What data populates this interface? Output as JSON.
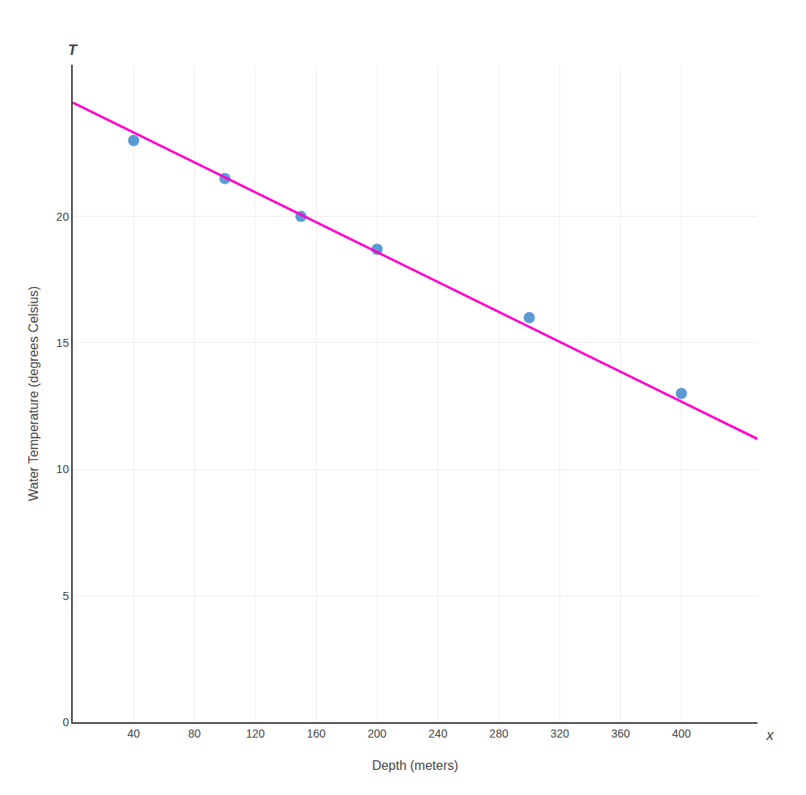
{
  "chart_data": {
    "type": "scatter",
    "xlabel": "Depth (meters)",
    "ylabel": "Water Temperature (degrees Celsius)",
    "annotations": [
      "x",
      "T"
    ],
    "series": [
      {
        "type": "scatter",
        "color": "#5b9bd5",
        "x": [
          40,
          100,
          150,
          200,
          300,
          400
        ],
        "values": [
          23.0,
          21.5,
          20.0,
          18.7,
          16.0,
          13.0
        ]
      },
      {
        "type": "line",
        "color": "#ff00cc",
        "x": [
          0,
          450
        ],
        "values": [
          24.5,
          11.2
        ]
      }
    ],
    "xlim": [
      0,
      450
    ],
    "xticks": [
      40,
      80,
      120,
      160,
      200,
      240,
      280,
      320,
      360,
      400
    ],
    "ylim": [
      0,
      26
    ],
    "yticks": [
      0,
      5,
      10,
      15,
      20
    ],
    "grid": true
  }
}
